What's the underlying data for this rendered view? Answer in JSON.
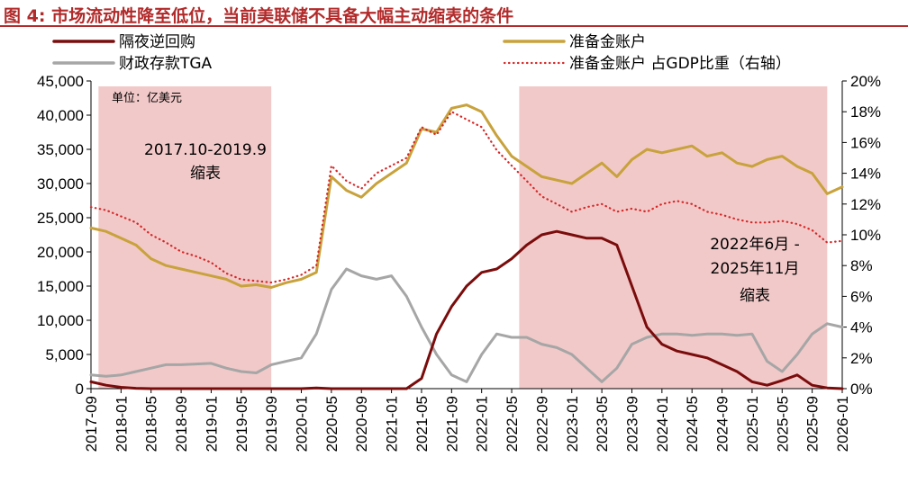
{
  "figure": {
    "label": "图 4:",
    "title": "市场流动性降至低位，当前美联储不具备大幅主动缩表的条件"
  },
  "chart_data": {
    "type": "line",
    "unit_label": "单位：亿美元",
    "x_start": "2017-09",
    "x_end": "2026-01",
    "x_ticks": [
      "2017-09",
      "2018-01",
      "2018-05",
      "2018-09",
      "2019-01",
      "2019-05",
      "2019-09",
      "2020-01",
      "2020-05",
      "2020-09",
      "2021-01",
      "2021-05",
      "2021-09",
      "2022-01",
      "2022-05",
      "2022-09",
      "2023-01",
      "2023-05",
      "2023-09",
      "2024-01",
      "2024-05",
      "2024-09",
      "2025-01",
      "2025-05",
      "2025-09",
      "2026-01"
    ],
    "y_left": {
      "min": 0,
      "max": 45000,
      "ticks": [
        "0",
        "5,000",
        "10,000",
        "15,000",
        "20,000",
        "25,000",
        "30,000",
        "35,000",
        "40,000",
        "45,000"
      ]
    },
    "y_right": {
      "min": 0,
      "max": 20,
      "label": "右轴",
      "ticks": [
        "0%",
        "2%",
        "4%",
        "6%",
        "8%",
        "10%",
        "12%",
        "14%",
        "16%",
        "18%",
        "20%"
      ]
    },
    "shaded": [
      {
        "from": "2017-10",
        "to": "2019-09",
        "label_1": "2017.10-2019.9",
        "label_2": "缩表"
      },
      {
        "from": "2022-06",
        "to": "2025-11",
        "label_1": "2022年6月 -",
        "label_2": "2025年11月",
        "label_3": "缩表"
      }
    ],
    "x": [
      "2017-09",
      "2017-11",
      "2018-01",
      "2018-03",
      "2018-05",
      "2018-07",
      "2018-09",
      "2018-11",
      "2019-01",
      "2019-03",
      "2019-05",
      "2019-07",
      "2019-09",
      "2019-11",
      "2020-01",
      "2020-03",
      "2020-05",
      "2020-07",
      "2020-09",
      "2020-11",
      "2021-01",
      "2021-03",
      "2021-05",
      "2021-07",
      "2021-09",
      "2021-11",
      "2022-01",
      "2022-03",
      "2022-05",
      "2022-07",
      "2022-09",
      "2022-11",
      "2023-01",
      "2023-03",
      "2023-05",
      "2023-07",
      "2023-09",
      "2023-11",
      "2024-01",
      "2024-03",
      "2024-05",
      "2024-07",
      "2024-09",
      "2024-11",
      "2025-01",
      "2025-03",
      "2025-05",
      "2025-07",
      "2025-09",
      "2025-11",
      "2026-01"
    ],
    "series": [
      {
        "name": "隔夜逆回购",
        "axis": "left",
        "color": "#7a0c0c",
        "style": "solid",
        "values": [
          1000,
          500,
          200,
          50,
          0,
          0,
          0,
          0,
          0,
          0,
          0,
          0,
          0,
          0,
          0,
          100,
          0,
          0,
          0,
          0,
          0,
          0,
          1500,
          8000,
          12000,
          15000,
          17000,
          17500,
          19000,
          21000,
          22500,
          23000,
          22500,
          22000,
          22000,
          21000,
          15000,
          9000,
          6500,
          5500,
          5000,
          4500,
          3500,
          2500,
          1000,
          500,
          1200,
          2000,
          500,
          100,
          0
        ]
      },
      {
        "name": "准备金账户",
        "axis": "left",
        "color": "#c8a23c",
        "style": "solid",
        "values": [
          23500,
          23000,
          22000,
          21000,
          19000,
          18000,
          17500,
          17000,
          16500,
          16000,
          15000,
          15200,
          14800,
          15500,
          16000,
          17000,
          31000,
          29000,
          28000,
          30000,
          31500,
          33000,
          38000,
          37500,
          41000,
          41500,
          40500,
          37000,
          34000,
          32500,
          31000,
          30500,
          30000,
          31500,
          33000,
          31000,
          33500,
          35000,
          34500,
          35000,
          35500,
          34000,
          34500,
          33000,
          32500,
          33500,
          34000,
          32500,
          31500,
          28500,
          29500
        ]
      },
      {
        "name": "财政存款TGA",
        "axis": "left",
        "color": "#a6a6a6",
        "style": "solid",
        "values": [
          2000,
          1800,
          2000,
          2500,
          3000,
          3500,
          3500,
          3600,
          3700,
          3000,
          2500,
          2300,
          3500,
          4000,
          4500,
          8000,
          14500,
          17500,
          16500,
          16000,
          16500,
          13500,
          9000,
          5000,
          2000,
          1000,
          5000,
          8000,
          7500,
          7500,
          6500,
          6000,
          5000,
          3000,
          1000,
          3000,
          6500,
          7500,
          8000,
          8000,
          7800,
          8000,
          8000,
          7800,
          8000,
          4000,
          2500,
          5000,
          8000,
          9500,
          9000
        ]
      },
      {
        "name": "准备金账户 占GDP比重（右轴）",
        "axis": "right",
        "color": "#d62828",
        "style": "dotted",
        "values": [
          11.8,
          11.6,
          11.2,
          10.8,
          10.0,
          9.5,
          8.9,
          8.6,
          8.2,
          7.5,
          7.1,
          7.0,
          6.9,
          7.1,
          7.4,
          8.0,
          14.5,
          13.5,
          13.0,
          14.0,
          14.5,
          15.0,
          17.0,
          16.5,
          18.0,
          17.5,
          17.0,
          15.5,
          14.5,
          13.5,
          12.5,
          12.0,
          11.5,
          11.8,
          12.0,
          11.5,
          11.7,
          11.5,
          12.0,
          12.2,
          12.0,
          11.5,
          11.3,
          11.0,
          10.8,
          10.8,
          10.9,
          10.7,
          10.3,
          9.5,
          9.6
        ]
      }
    ]
  }
}
